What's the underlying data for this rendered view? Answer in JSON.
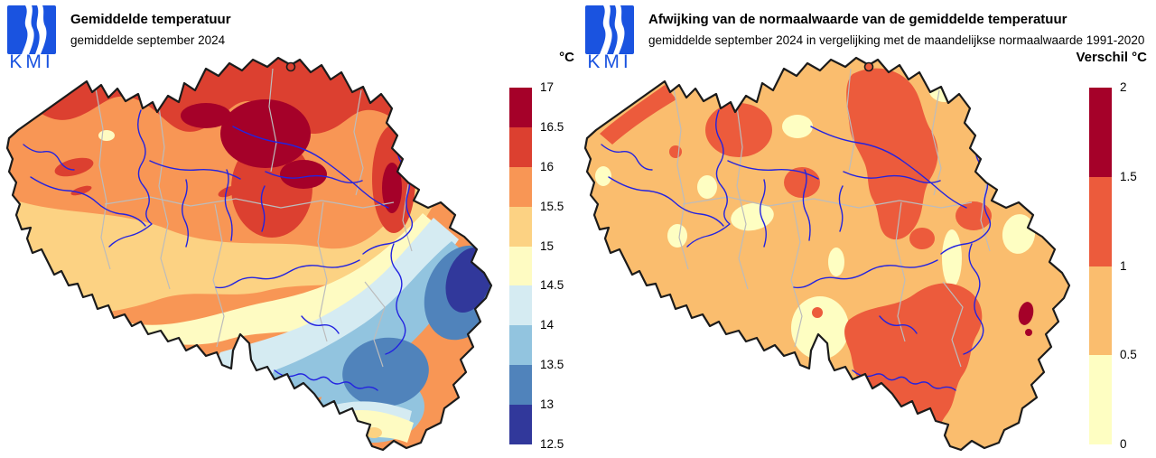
{
  "brand": {
    "logo_text": "KMI",
    "logo_color": "#1a53e0"
  },
  "map_style": {
    "outline": "#1b1b1b",
    "rivers": "#2323e0",
    "provinces": "#bcbcbc",
    "background": "#ffffff"
  },
  "panels": {
    "left": {
      "title": "Gemiddelde temperatuur",
      "subtitle": "gemiddelde september 2024",
      "legend": {
        "unit": "°C",
        "labels": [
          "17",
          "16.5",
          "16",
          "15.5",
          "15",
          "14.5",
          "14",
          "13.5",
          "13",
          "12.5"
        ],
        "colors": [
          "#A50129",
          "#DC4030",
          "#F89655",
          "#FCD283",
          "#FEFBC2",
          "#D5EBF2",
          "#92C4DF",
          "#5083BB",
          "#31389B"
        ]
      }
    },
    "right": {
      "title": "Afwijking van de normaalwaarde van de gemiddelde temperatuur",
      "subtitle": "gemiddelde september 2024 in vergelijking met de maandelijkse normaalwaarde 1991-2020",
      "legend": {
        "unit": "Verschil °C",
        "labels": [
          "2",
          "1.5",
          "1",
          "0.5",
          "0"
        ],
        "colors": [
          "#A50129",
          "#EC5B3C",
          "#FABD6E",
          "#FEFEC2"
        ]
      }
    }
  }
}
